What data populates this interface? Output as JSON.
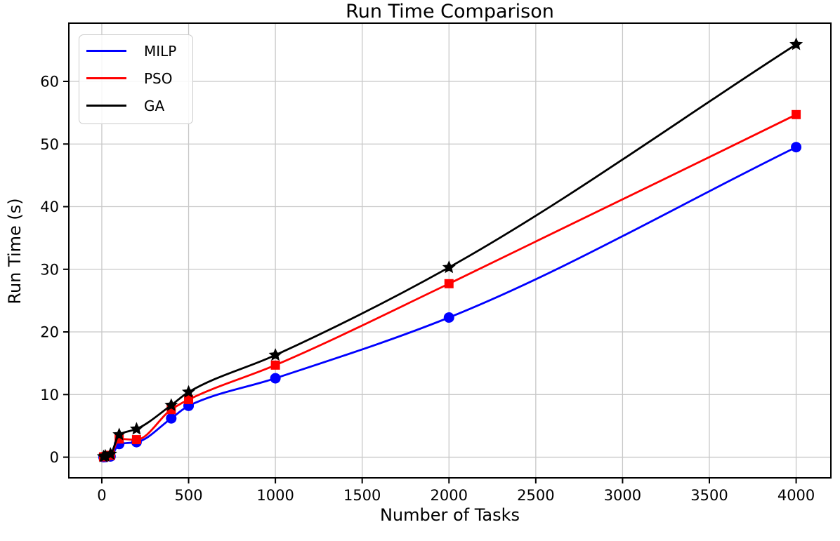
{
  "chart_data": {
    "type": "line",
    "title": "Run Time Comparison",
    "xlabel": "Number of Tasks",
    "ylabel": "Run Time (s)",
    "xlim": [
      -190,
      4200
    ],
    "ylim": [
      -3.3,
      69.3
    ],
    "x_ticks": [
      0,
      500,
      1000,
      1500,
      2000,
      2500,
      3000,
      3500,
      4000
    ],
    "x_ticklabels": [
      "0",
      "500",
      "1000",
      "1500",
      "2000",
      "2500",
      "3000",
      "3500",
      "4000"
    ],
    "y_ticks": [
      0,
      10,
      20,
      30,
      40,
      50,
      60
    ],
    "y_ticklabels": [
      "0",
      "10",
      "20",
      "30",
      "40",
      "50",
      "60"
    ],
    "grid": true,
    "legend_position": "upper-left",
    "x": [
      10,
      20,
      50,
      100,
      200,
      400,
      500,
      1000,
      2000,
      4000
    ],
    "series": [
      {
        "name": "MILP",
        "color": "#0000ff",
        "marker": "circle",
        "values": [
          0.01,
          0.03,
          0.12,
          2.1,
          2.4,
          6.2,
          8.2,
          12.6,
          22.3,
          49.5
        ]
      },
      {
        "name": "PSO",
        "color": "#ff0000",
        "marker": "square",
        "values": [
          0.05,
          0.1,
          0.3,
          2.9,
          2.8,
          7.6,
          9.2,
          14.7,
          27.7,
          54.7
        ]
      },
      {
        "name": "GA",
        "color": "#000000",
        "marker": "star",
        "values": [
          0.1,
          0.2,
          0.5,
          3.6,
          4.5,
          8.3,
          10.4,
          16.3,
          30.3,
          65.9
        ]
      }
    ],
    "style": {
      "grid_color": "#c8c8c8",
      "spine_color": "#000000",
      "tick_label_size": 21,
      "line_width": 2.8
    }
  }
}
